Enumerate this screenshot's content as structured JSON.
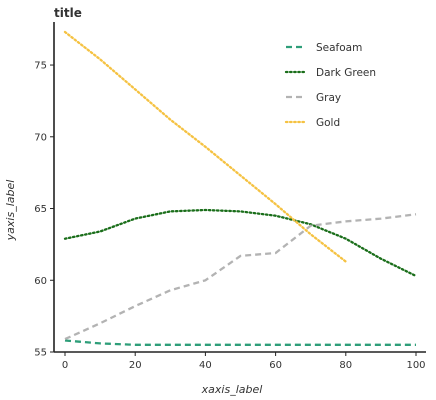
{
  "chart_data": {
    "type": "line",
    "title": "title",
    "xlabel": "xaxis_label",
    "ylabel": "yaxis_label",
    "xlim": [
      0,
      100
    ],
    "ylim": [
      55,
      78
    ],
    "x_ticks": [
      0,
      20,
      40,
      60,
      80,
      100
    ],
    "y_ticks": [
      55,
      60,
      65,
      70,
      75
    ],
    "grid": false,
    "legend_position": "top-right",
    "series": [
      {
        "name": "Seafoam",
        "color": "#2e9e79",
        "dash": "dashed",
        "points": [
          [
            0,
            55.8
          ],
          [
            10,
            55.6
          ],
          [
            20,
            55.5
          ],
          [
            30,
            55.5
          ],
          [
            40,
            55.5
          ],
          [
            50,
            55.5
          ],
          [
            60,
            55.5
          ],
          [
            70,
            55.5
          ],
          [
            80,
            55.5
          ],
          [
            90,
            55.5
          ],
          [
            100,
            55.5
          ]
        ]
      },
      {
        "name": "Dark Green",
        "color": "#1a6e1a",
        "dash": "dotted",
        "points": [
          [
            0,
            62.9
          ],
          [
            10,
            63.4
          ],
          [
            20,
            64.3
          ],
          [
            30,
            64.8
          ],
          [
            40,
            64.9
          ],
          [
            50,
            64.8
          ],
          [
            60,
            64.5
          ],
          [
            70,
            63.9
          ],
          [
            80,
            62.9
          ],
          [
            90,
            61.5
          ],
          [
            100,
            60.3
          ]
        ]
      },
      {
        "name": "Gray",
        "color": "#b3b3b3",
        "dash": "dashed",
        "points": [
          [
            0,
            55.9
          ],
          [
            10,
            57.0
          ],
          [
            20,
            58.2
          ],
          [
            30,
            59.3
          ],
          [
            40,
            60.0
          ],
          [
            50,
            61.7
          ],
          [
            60,
            61.9
          ],
          [
            70,
            63.8
          ],
          [
            80,
            64.1
          ],
          [
            90,
            64.3
          ],
          [
            100,
            64.6
          ]
        ]
      },
      {
        "name": "Gold",
        "color": "#f5c242",
        "dash": "dotted",
        "points": [
          [
            0,
            77.3
          ],
          [
            10,
            75.4
          ],
          [
            20,
            73.3
          ],
          [
            30,
            71.2
          ],
          [
            40,
            69.3
          ],
          [
            50,
            67.3
          ],
          [
            60,
            65.3
          ],
          [
            70,
            63.2
          ],
          [
            80,
            61.3
          ]
        ]
      }
    ]
  }
}
